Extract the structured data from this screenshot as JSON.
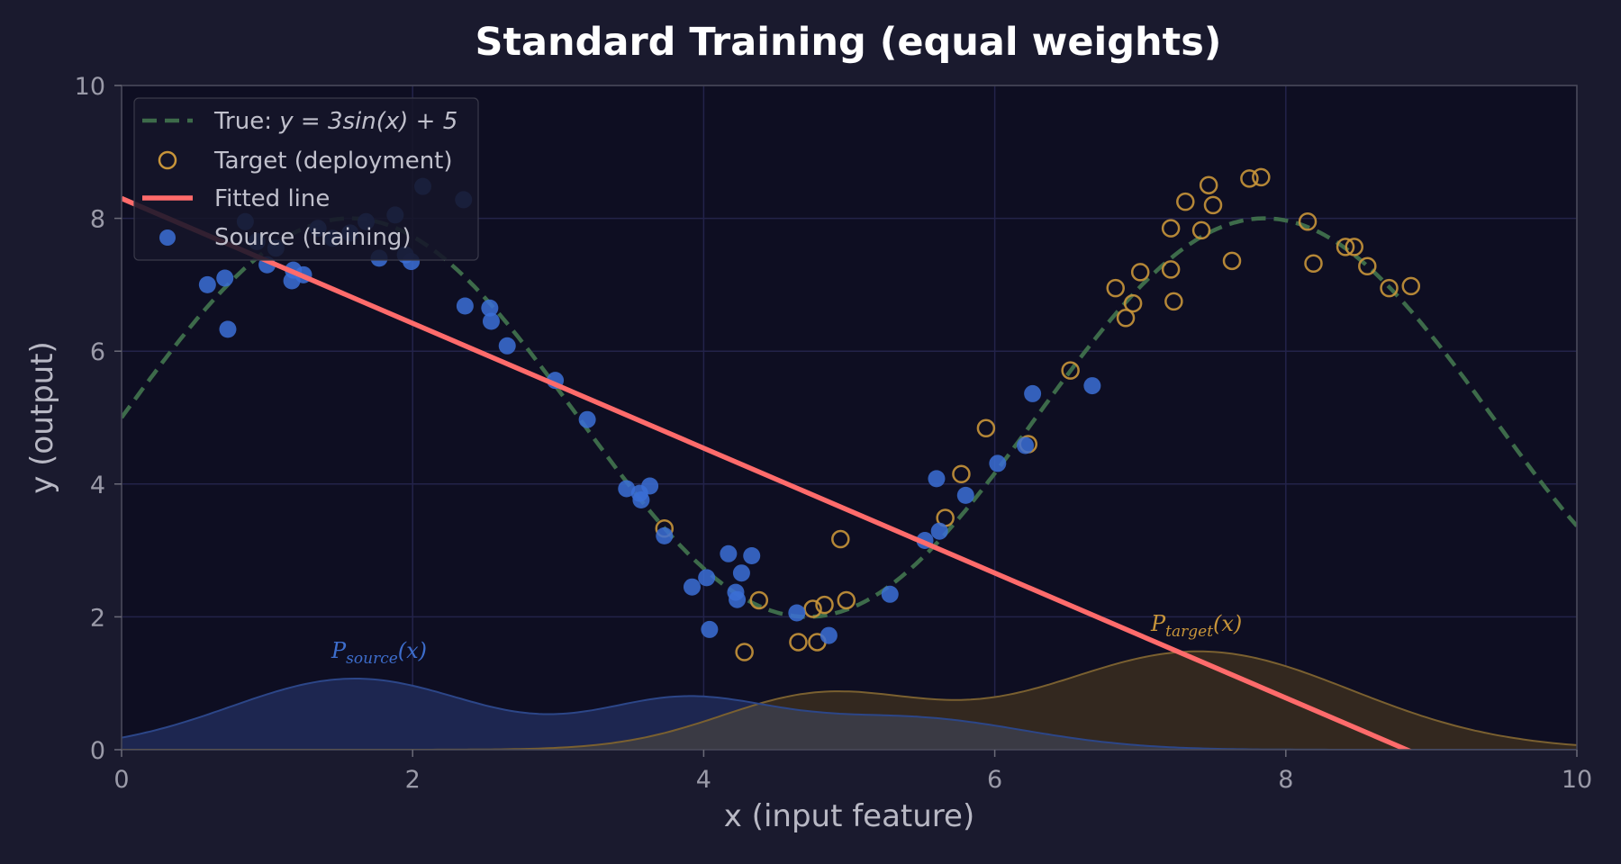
{
  "colors": {
    "background": "#1a1a2e",
    "plot_background": "#0e0e22",
    "grid": "#23234a",
    "true_curve": "#3d6b4a",
    "fitted_line": "#ff6b6b",
    "source": "#3b6fd6",
    "target": "#c8953a",
    "source_density_fill": "#1d2650",
    "target_density_fill": "#33281f",
    "overlap_fill": "#3a3a44"
  },
  "chart_data": {
    "type": "scatter",
    "title": "Standard Training (equal weights)",
    "xlabel": "x (input feature)",
    "ylabel": "y (output)",
    "xlim": [
      0,
      10
    ],
    "ylim": [
      0,
      10
    ],
    "xticks": [
      0,
      2,
      4,
      6,
      8,
      10
    ],
    "yticks": [
      0,
      2,
      4,
      6,
      8,
      10
    ],
    "grid": true,
    "legend_position": "top-left",
    "legend": {
      "true_prefix": "True: ",
      "true_formula": "y = 3sin(x) + 5",
      "target": "Target (deployment)",
      "fitted": "Fitted line",
      "source": "Source (training)"
    },
    "true_function": {
      "amplitude": 3,
      "offset": 5
    },
    "fitted_line": {
      "intercept": 8.3,
      "slope": -0.94
    },
    "source_points": [
      [
        0.59,
        7.0
      ],
      [
        0.71,
        7.1
      ],
      [
        0.73,
        6.33
      ],
      [
        0.85,
        7.95
      ],
      [
        0.93,
        7.65
      ],
      [
        1.0,
        7.3
      ],
      [
        1.06,
        7.55
      ],
      [
        1.18,
        7.22
      ],
      [
        1.17,
        7.06
      ],
      [
        1.25,
        7.15
      ],
      [
        1.35,
        7.85
      ],
      [
        1.45,
        7.7
      ],
      [
        1.57,
        7.78
      ],
      [
        1.68,
        7.95
      ],
      [
        1.77,
        7.4
      ],
      [
        1.88,
        8.05
      ],
      [
        1.95,
        7.45
      ],
      [
        1.99,
        7.35
      ],
      [
        2.07,
        8.48
      ],
      [
        2.36,
        6.68
      ],
      [
        2.53,
        6.65
      ],
      [
        2.54,
        6.45
      ],
      [
        2.65,
        6.08
      ],
      [
        2.35,
        8.28
      ],
      [
        2.98,
        5.56
      ],
      [
        3.2,
        4.97
      ],
      [
        3.47,
        3.93
      ],
      [
        3.56,
        3.86
      ],
      [
        3.57,
        3.76
      ],
      [
        3.63,
        3.97
      ],
      [
        3.73,
        3.22
      ],
      [
        3.92,
        2.45
      ],
      [
        4.02,
        2.59
      ],
      [
        4.04,
        1.81
      ],
      [
        4.17,
        2.95
      ],
      [
        4.22,
        2.37
      ],
      [
        4.23,
        2.26
      ],
      [
        4.26,
        2.66
      ],
      [
        4.33,
        2.92
      ],
      [
        4.64,
        2.06
      ],
      [
        4.86,
        1.72
      ],
      [
        5.28,
        2.34
      ],
      [
        5.52,
        3.15
      ],
      [
        5.6,
        4.08
      ],
      [
        5.62,
        3.29
      ],
      [
        5.8,
        3.83
      ],
      [
        6.02,
        4.31
      ],
      [
        6.21,
        4.58
      ],
      [
        6.26,
        5.36
      ],
      [
        6.67,
        5.48
      ]
    ],
    "target_points": [
      [
        3.73,
        3.33
      ],
      [
        4.28,
        1.47
      ],
      [
        4.38,
        2.25
      ],
      [
        4.65,
        1.62
      ],
      [
        4.75,
        2.12
      ],
      [
        4.78,
        1.62
      ],
      [
        4.83,
        2.18
      ],
      [
        4.94,
        3.17
      ],
      [
        4.98,
        2.25
      ],
      [
        5.66,
        3.49
      ],
      [
        5.77,
        4.15
      ],
      [
        5.94,
        4.84
      ],
      [
        6.23,
        4.6
      ],
      [
        6.52,
        5.71
      ],
      [
        6.83,
        6.95
      ],
      [
        6.9,
        6.5
      ],
      [
        6.95,
        6.72
      ],
      [
        7.0,
        7.19
      ],
      [
        7.21,
        7.85
      ],
      [
        7.21,
        7.23
      ],
      [
        7.23,
        6.75
      ],
      [
        7.31,
        8.25
      ],
      [
        7.42,
        7.82
      ],
      [
        7.47,
        8.5
      ],
      [
        7.5,
        8.2
      ],
      [
        7.63,
        7.36
      ],
      [
        7.75,
        8.6
      ],
      [
        7.83,
        8.62
      ],
      [
        8.15,
        7.95
      ],
      [
        8.19,
        7.32
      ],
      [
        8.41,
        7.57
      ],
      [
        8.47,
        7.57
      ],
      [
        8.56,
        7.28
      ],
      [
        8.71,
        6.95
      ],
      [
        8.86,
        6.98
      ]
    ],
    "source_density": {
      "label_main": "P",
      "label_sub": "source",
      "label_arg": "(x)",
      "components": [
        {
          "mu": 1.6,
          "sigma": 0.85,
          "weight": 1.07
        },
        {
          "mu": 3.85,
          "sigma": 0.6,
          "weight": 0.7
        },
        {
          "mu": 5.4,
          "sigma": 0.8,
          "weight": 0.48
        }
      ]
    },
    "target_density": {
      "label_main": "P",
      "label_sub": "target",
      "label_arg": "(x)",
      "components": [
        {
          "mu": 4.8,
          "sigma": 0.7,
          "weight": 0.8
        },
        {
          "mu": 7.4,
          "sigma": 1.05,
          "weight": 1.48
        }
      ]
    }
  }
}
